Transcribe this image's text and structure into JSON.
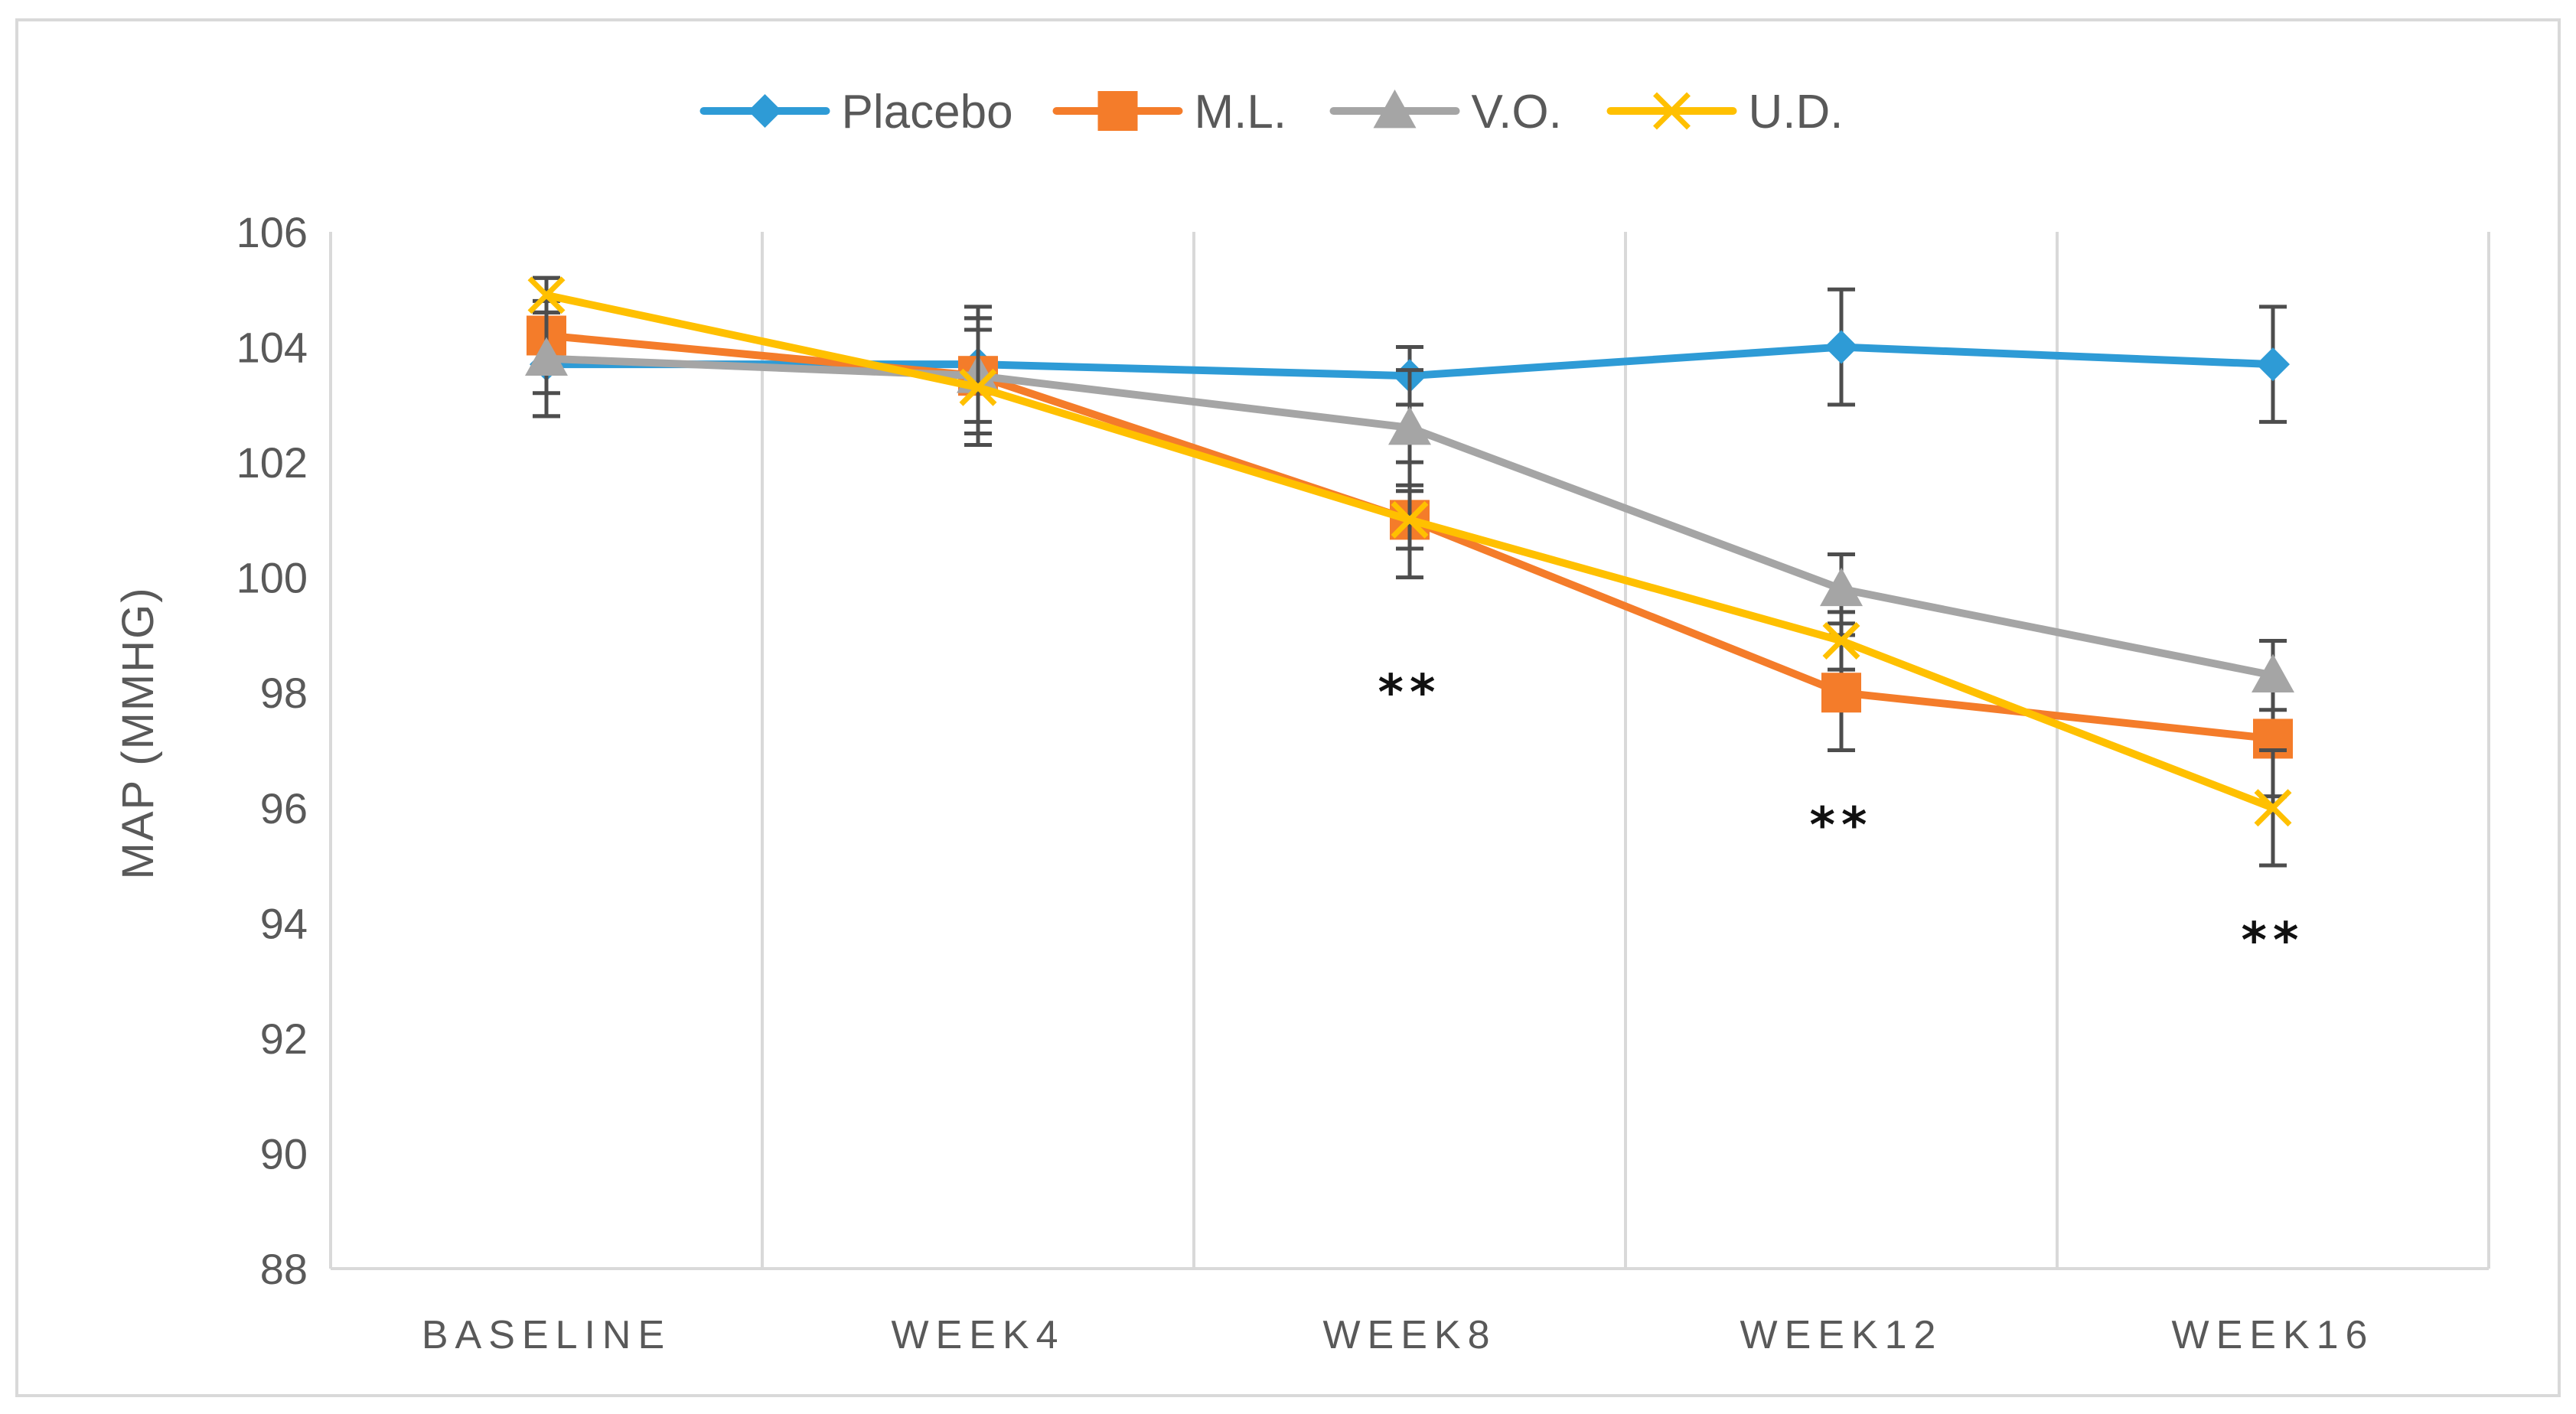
{
  "chart_data": {
    "type": "line",
    "title": "",
    "xlabel": "",
    "ylabel": "MAP (MMHG)",
    "ylim": [
      88,
      106
    ],
    "yticks": [
      88,
      90,
      92,
      94,
      96,
      98,
      100,
      102,
      104,
      106
    ],
    "grid": "vertical",
    "legend_position": "top-center",
    "categories": [
      "BASELINE",
      "WEEK4",
      "WEEK8",
      "WEEK12",
      "WEEK16"
    ],
    "series": [
      {
        "name": "Placebo",
        "color": "#2E9BD6",
        "marker": "diamond",
        "values": [
          103.7,
          103.7,
          103.5,
          104.0,
          103.7
        ],
        "errors": [
          0.9,
          1.0,
          0.5,
          1.0,
          1.0
        ]
      },
      {
        "name": "M.L.",
        "color": "#F47C2A",
        "marker": "square",
        "values": [
          104.2,
          103.5,
          101.0,
          98.0,
          97.2
        ],
        "errors": [
          1.0,
          1.0,
          1.0,
          1.0,
          1.0
        ]
      },
      {
        "name": "V.O.",
        "color": "#A5A5A5",
        "marker": "triangle",
        "values": [
          103.8,
          103.5,
          102.6,
          99.8,
          98.3
        ],
        "errors": [
          1.0,
          1.0,
          1.0,
          0.6,
          0.6
        ]
      },
      {
        "name": "U.D.",
        "color": "#FFC000",
        "marker": "x",
        "values": [
          104.9,
          103.3,
          101.0,
          98.9,
          96.0
        ],
        "errors": [
          0.3,
          1.0,
          0.5,
          0.5,
          1.0
        ]
      }
    ],
    "annotations": [
      {
        "text": "**",
        "category": "WEEK8",
        "y": 98.0
      },
      {
        "text": "**",
        "category": "WEEK12",
        "y": 95.7
      },
      {
        "text": "**",
        "category": "WEEK16",
        "y": 93.7
      }
    ]
  }
}
